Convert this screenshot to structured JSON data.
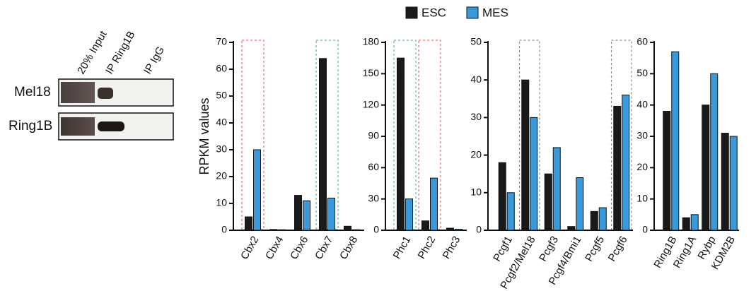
{
  "blot": {
    "lanes": [
      "20% Input",
      "IP Ring1B",
      "IP IgG"
    ],
    "rows": [
      "Mel18",
      "Ring1B"
    ]
  },
  "legend": [
    {
      "name": "ESC",
      "color": "#1a1a1a"
    },
    {
      "name": "MES",
      "color": "#3a9ad9"
    }
  ],
  "chart_data": [
    {
      "type": "bar",
      "ylabel": "RPKM values",
      "categories": [
        "Cbx2",
        "Cbx4",
        "Cbx6",
        "Cbx7",
        "Cbx8"
      ],
      "series": [
        {
          "values": [
            5,
            0.3,
            13,
            64,
            1.5
          ]
        },
        {
          "values": [
            30,
            0.2,
            11,
            12,
            0.2
          ]
        }
      ],
      "ylim": [
        0,
        70
      ],
      "yticks": [
        0,
        10,
        20,
        30,
        40,
        50,
        60,
        70
      ],
      "highlights": [
        {
          "index": 0,
          "color": "#e07070"
        },
        {
          "index": 3,
          "color": "#5cb89a"
        }
      ]
    },
    {
      "type": "bar",
      "categories": [
        "Phc1",
        "Phc2",
        "Phc3"
      ],
      "series": [
        {
          "values": [
            165,
            9,
            2
          ]
        },
        {
          "values": [
            30,
            50,
            1
          ]
        }
      ],
      "ylim": [
        0,
        180
      ],
      "yticks": [
        0,
        30,
        60,
        90,
        120,
        150,
        180
      ],
      "highlights": [
        {
          "index": 0,
          "color": "#5cb89a"
        },
        {
          "index": 1,
          "color": "#e07070"
        }
      ]
    },
    {
      "type": "bar",
      "categories": [
        "Pcgf1",
        "Pcgf2/Mel18",
        "Pcgf3",
        "Pcgf4/Bmi1",
        "Pcgf5",
        "Pcgf6"
      ],
      "series": [
        {
          "values": [
            18,
            40,
            15,
            1,
            5,
            33
          ]
        },
        {
          "values": [
            10,
            30,
            22,
            14,
            6,
            36
          ]
        }
      ],
      "ylim": [
        0,
        50
      ],
      "yticks": [
        0,
        10,
        20,
        30,
        40,
        50
      ],
      "highlights": [
        {
          "index": 1,
          "color": "#888888"
        },
        {
          "index": 5,
          "color": "#888888"
        }
      ]
    },
    {
      "type": "bar",
      "categories": [
        "Ring1B",
        "Ring1A",
        "Rybp",
        "KDM2B"
      ],
      "series": [
        {
          "values": [
            38,
            4,
            40,
            31
          ]
        },
        {
          "values": [
            57,
            5,
            50,
            30
          ]
        }
      ],
      "ylim": [
        0,
        60
      ],
      "yticks": [
        0,
        10,
        20,
        30,
        40,
        50,
        60
      ]
    }
  ]
}
